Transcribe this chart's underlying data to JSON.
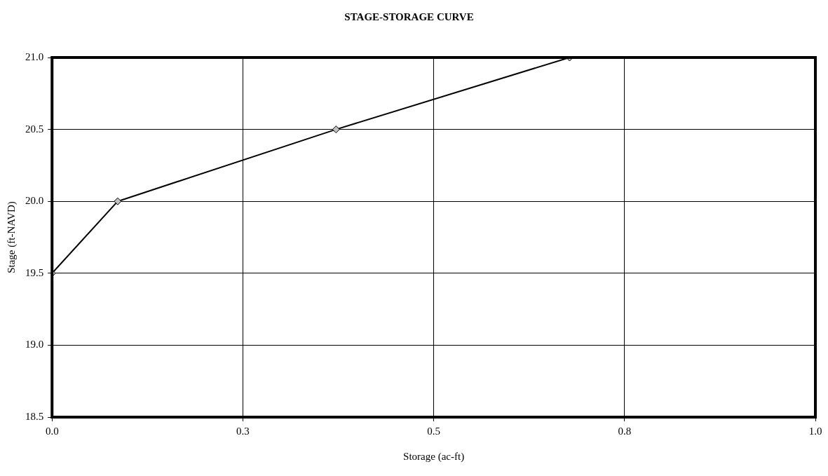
{
  "chart_data": {
    "type": "line",
    "title": "STAGE-STORAGE CURVE",
    "xlabel": "Storage (ac-ft)",
    "ylabel": "Stage (ft-NAVD)",
    "x": [
      0,
      0.086,
      0.372,
      0.678
    ],
    "series": [
      {
        "color": "#000000",
        "values": [
          19.5,
          20.0,
          20.5,
          21.0
        ]
      }
    ],
    "xlim": [
      0,
      1
    ],
    "xticks": [
      {
        "value": 0,
        "label": "0.0"
      },
      {
        "value": 0.25,
        "label": "0.3"
      },
      {
        "value": 0.5,
        "label": "0.5"
      },
      {
        "value": 0.75,
        "label": "0.8"
      },
      {
        "value": 1,
        "label": "1.0"
      }
    ],
    "ylim": [
      18.5,
      21
    ],
    "yticks": [
      {
        "value": 18.5,
        "label": "18.5"
      },
      {
        "value": 19,
        "label": "19.0"
      },
      {
        "value": 19.5,
        "label": "19.5"
      },
      {
        "value": 20,
        "label": "20.0"
      },
      {
        "value": 20.5,
        "label": "20.5"
      },
      {
        "value": 21,
        "label": "21.0"
      }
    ],
    "grid": true,
    "marker": "diamond",
    "line_style": "solid",
    "legend": false
  }
}
